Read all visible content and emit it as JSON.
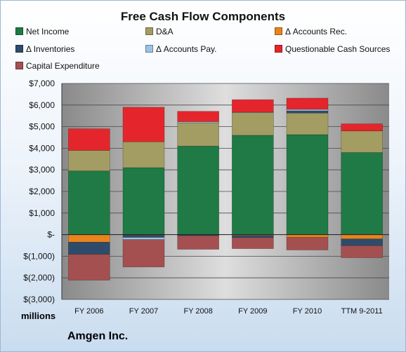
{
  "chart_data": {
    "type": "bar",
    "stacked": true,
    "title": "Free Cash Flow Components",
    "units_label": "millions",
    "footer": "Amgen Inc.",
    "categories": [
      "FY 2006",
      "FY 2007",
      "FY 2008",
      "FY 2009",
      "FY 2010",
      "TTM 9-2011"
    ],
    "ylim": [
      -3000,
      7000
    ],
    "yticks": [
      {
        "value": 7000,
        "label": "$7,000"
      },
      {
        "value": 6000,
        "label": "$6,000"
      },
      {
        "value": 5000,
        "label": "$5,000"
      },
      {
        "value": 4000,
        "label": "$4,000"
      },
      {
        "value": 3000,
        "label": "$3,000"
      },
      {
        "value": 2000,
        "label": "$2,000"
      },
      {
        "value": 1000,
        "label": "$1,000"
      },
      {
        "value": 0,
        "label": "$-"
      },
      {
        "value": -1000,
        "label": "$(1,000)"
      },
      {
        "value": -2000,
        "label": "$(2,000)"
      },
      {
        "value": -3000,
        "label": "$(3,000)"
      }
    ],
    "grid": true,
    "legend": "top",
    "series": [
      {
        "name": "Net Income",
        "color": "#1f7a45",
        "values": [
          2950,
          3100,
          4100,
          4600,
          4630,
          3800
        ]
      },
      {
        "name": "D&A",
        "color": "#a39c63",
        "values": [
          950,
          1200,
          1080,
          1050,
          1000,
          1000
        ]
      },
      {
        "name": "Δ Accounts Rec.",
        "color": "#e8841c",
        "values": [
          -350,
          -30,
          0,
          -40,
          -130,
          -200
        ]
      },
      {
        "name": "Δ Inventories",
        "color": "#2f4b6b",
        "values": [
          -560,
          -100,
          -50,
          -100,
          100,
          -310
        ]
      },
      {
        "name": "Δ Accounts Pay.",
        "color": "#9cc3e4",
        "values": [
          0,
          -100,
          50,
          20,
          70,
          0
        ]
      },
      {
        "name": "Questionable Cash Sources",
        "color": "#e4262c",
        "values": [
          1000,
          1600,
          480,
          580,
          520,
          330
        ]
      },
      {
        "name": "Capital Expenditure",
        "color": "#a45050",
        "values": [
          -1200,
          -1270,
          -630,
          -510,
          -580,
          -560
        ]
      }
    ]
  }
}
